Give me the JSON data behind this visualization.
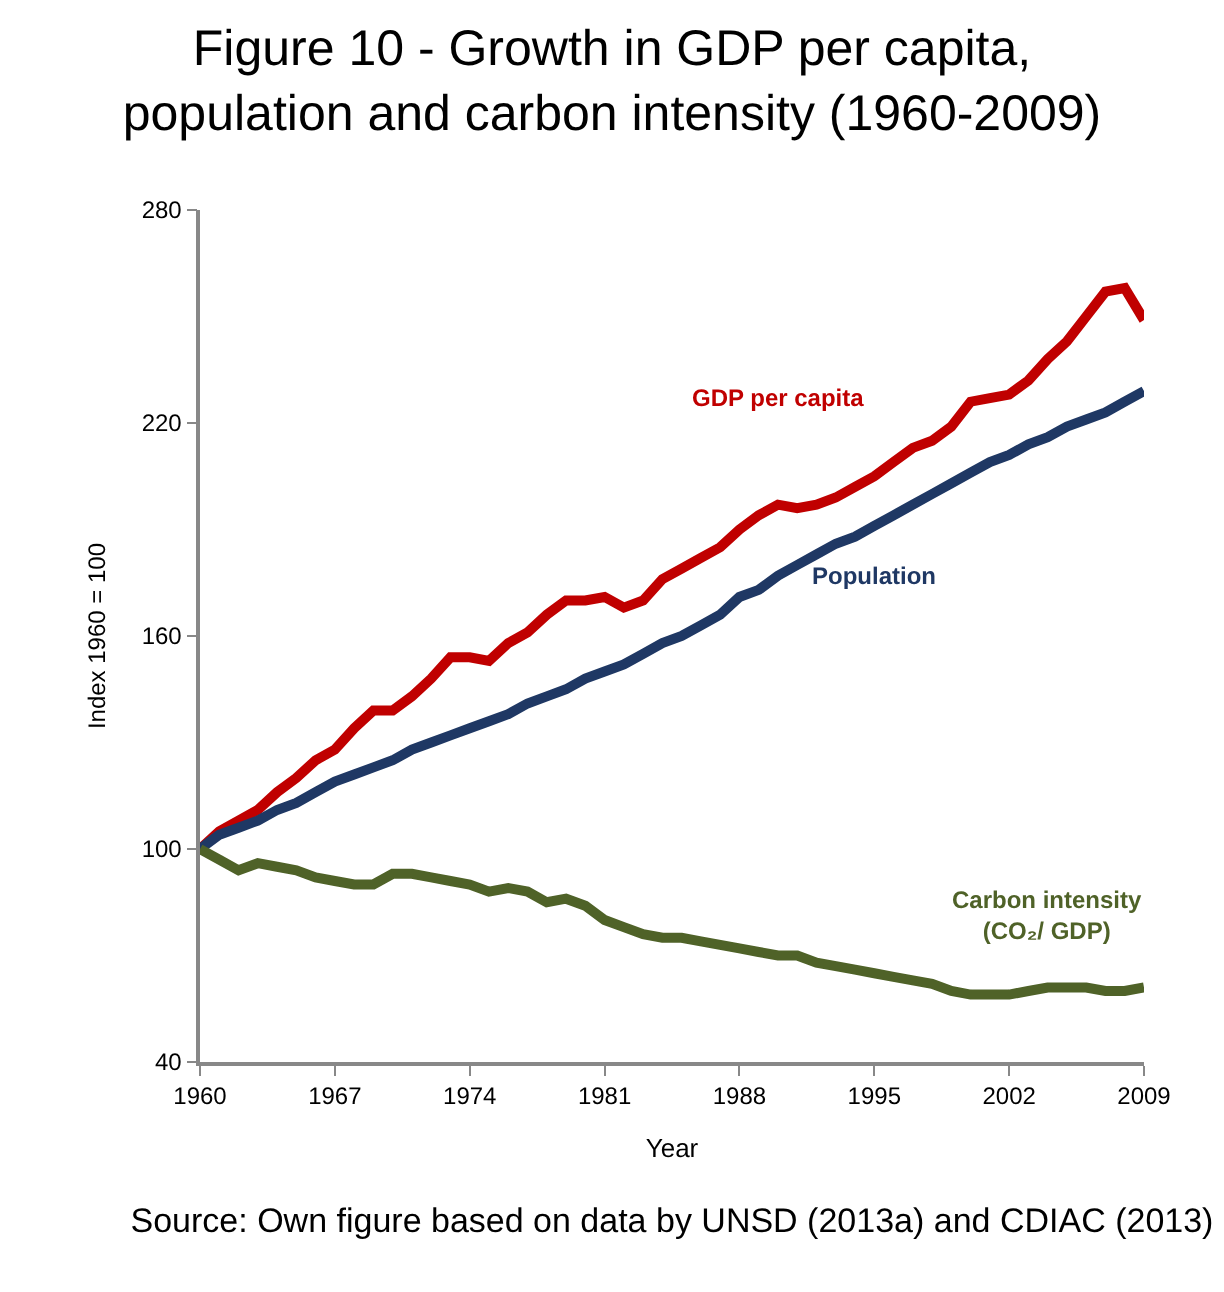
{
  "chart_data": {
    "type": "line",
    "title": "Figure 10 - Growth in GDP per capita,\npopulation and carbon intensity (1960-2009)",
    "xlabel": "Year",
    "ylabel": "Index 1960 = 100",
    "annotations": [
      "Source: Own figure based on data by UNSD (2013a) and CDIAC (2013)"
    ],
    "x": [
      1960,
      1961,
      1962,
      1963,
      1964,
      1965,
      1966,
      1967,
      1968,
      1969,
      1970,
      1971,
      1972,
      1973,
      1974,
      1975,
      1976,
      1977,
      1978,
      1979,
      1980,
      1981,
      1982,
      1983,
      1984,
      1985,
      1986,
      1987,
      1988,
      1989,
      1990,
      1991,
      1992,
      1993,
      1994,
      1995,
      1996,
      1997,
      1998,
      1999,
      2000,
      2001,
      2002,
      2003,
      2004,
      2005,
      2006,
      2007,
      2008,
      2009
    ],
    "series": [
      {
        "name": "GDP per capita",
        "color": "#c00000",
        "values": [
          100,
          105,
          108,
          111,
          116,
          120,
          125,
          128,
          134,
          139,
          139,
          143,
          148,
          154,
          154,
          153,
          158,
          161,
          166,
          170,
          170,
          171,
          168,
          170,
          176,
          179,
          182,
          185,
          190,
          194,
          197,
          196,
          197,
          199,
          202,
          205,
          209,
          213,
          215,
          219,
          226,
          227,
          228,
          232,
          238,
          243,
          250,
          257,
          258,
          249
        ]
      },
      {
        "name": "Population",
        "color": "#1f3864",
        "values": [
          100,
          104,
          106,
          108,
          111,
          113,
          116,
          119,
          121,
          123,
          125,
          128,
          130,
          132,
          134,
          136,
          138,
          141,
          143,
          145,
          148,
          150,
          152,
          155,
          158,
          160,
          163,
          166,
          171,
          173,
          177,
          180,
          183,
          186,
          188,
          191,
          194,
          197,
          200,
          203,
          206,
          209,
          211,
          214,
          216,
          219,
          221,
          223,
          226,
          229
        ]
      },
      {
        "name": "Carbon intensity\n(CO₂/ GDP)",
        "color": "#4f6228",
        "values": [
          100,
          97,
          94,
          96,
          95,
          94,
          92,
          91,
          90,
          90,
          93,
          93,
          92,
          91,
          90,
          88,
          89,
          88,
          85,
          86,
          84,
          80,
          78,
          76,
          75,
          75,
          74,
          73,
          72,
          71,
          70,
          70,
          68,
          67,
          66,
          65,
          64,
          63,
          62,
          60,
          59,
          59,
          59,
          60,
          61,
          61,
          61,
          60,
          60,
          61
        ]
      }
    ],
    "xlim": [
      1960,
      2009
    ],
    "xticks": [
      1960,
      1967,
      1974,
      1981,
      1988,
      1995,
      2002,
      2009
    ],
    "ylim": [
      40,
      280
    ],
    "yticks": [
      40,
      100,
      160,
      220,
      280
    ],
    "grid": false,
    "legend": false,
    "marker": "none",
    "line_style": "solid"
  }
}
